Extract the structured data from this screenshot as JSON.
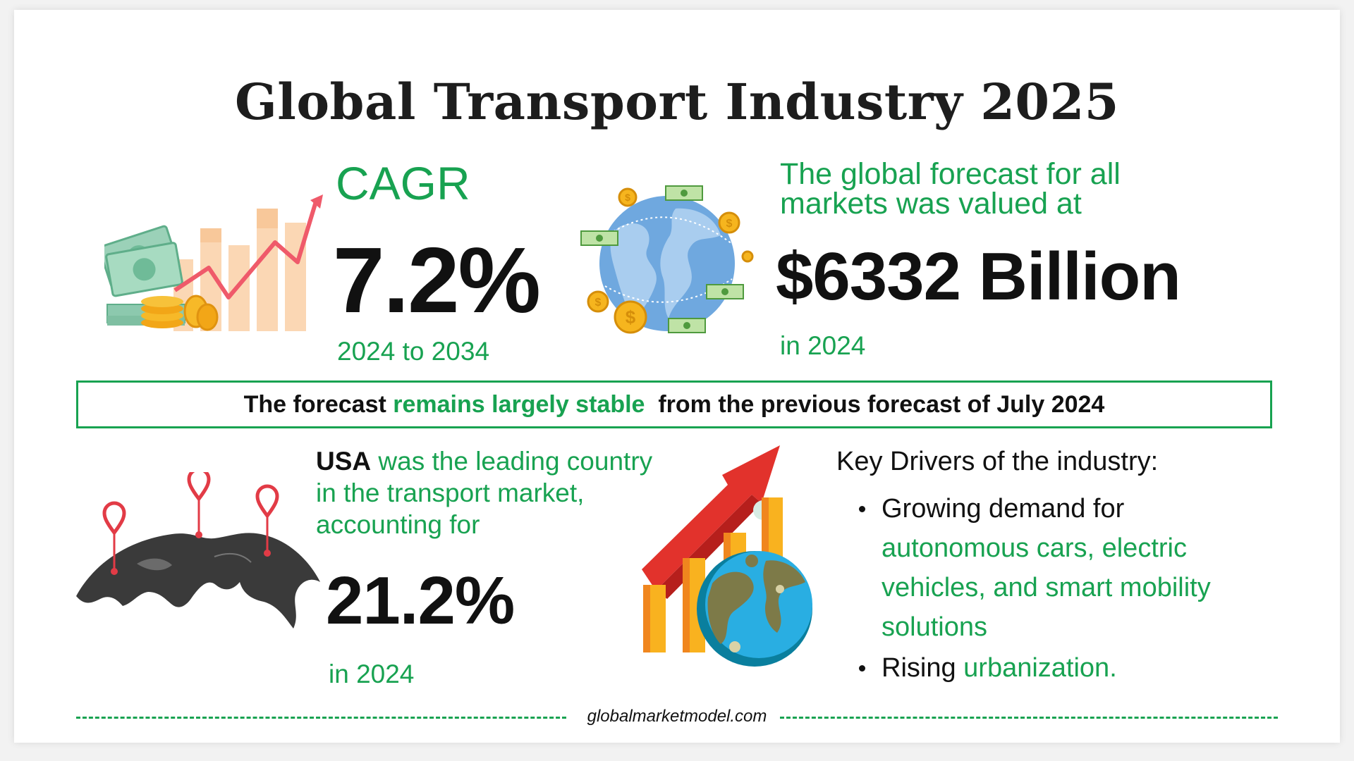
{
  "title": "Global Transport Industry 2025",
  "cagr": {
    "label": "CAGR",
    "value": "7.2%",
    "period": "2024 to 2034"
  },
  "forecast": {
    "line1": "The global forecast for all",
    "line2": "markets was valued at",
    "value": "$6332 Billion",
    "year": "in 2024"
  },
  "banner": {
    "part1": "The forecast ",
    "highlight": "remains largely stable",
    "part2": "  from the previous forecast of July 2024"
  },
  "usa": {
    "country": "USA",
    "text_line1": " was the leading country",
    "text_line2": "in the transport market,",
    "text_line3": "accounting for",
    "value": "21.2%",
    "year": "in 2024"
  },
  "drivers": {
    "title": "Key Drivers of the industry:",
    "item1_black": "Growing demand for",
    "item1_green": "autonomous cars, electric vehicles, and smart mobility solutions",
    "item2_black": "Rising ",
    "item2_green": "urbanization."
  },
  "footer": {
    "site": "globalmarketmodel.com"
  },
  "colors": {
    "accent_green": "#18a251",
    "text_dark": "#111111"
  },
  "icons": [
    "money-growth-chart-icon",
    "globe-money-icon",
    "world-map-pins-icon",
    "growth-globe-chart-icon"
  ]
}
